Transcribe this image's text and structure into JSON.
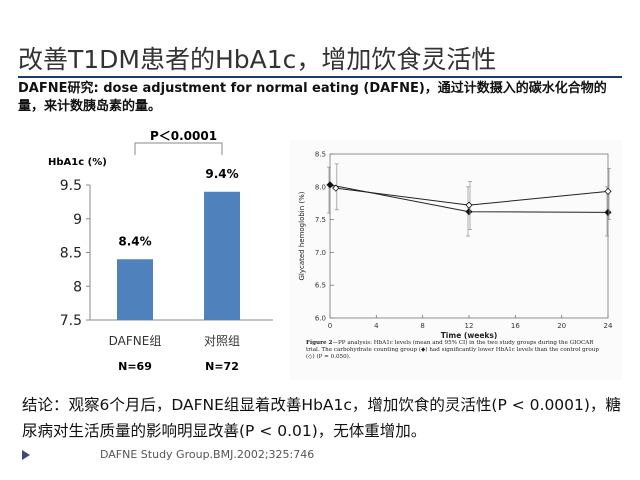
{
  "slide": {
    "title": "改善T1DM患者的HbA1c，增加饮食灵活性",
    "subtitle": "DAFNE研究: dose adjustment for normal eating (DAFNE)，通过计数摄入的碳水化合物的量，来计数胰岛素的量。",
    "conclusion": "结论：观察6个月后，DAFNE组显着改善HbA1c，增加饮食的灵活性(P < 0.0001)，糖尿病对生活质量的影响明显改善(P < 0.01)，无体重增加。",
    "reference": "DAFNE Study Group.BMJ.2002;325:746"
  },
  "chart_data": [
    {
      "type": "bar",
      "ylabel": "HbA1c (%)",
      "categories": [
        "DAFNE组",
        "对照组"
      ],
      "values": [
        8.4,
        9.4
      ],
      "value_labels": [
        "8.4%",
        "9.4%"
      ],
      "n_labels": [
        "N=69",
        "N=72"
      ],
      "annotation": "P＜0.0001",
      "ylim": [
        7.5,
        9.5
      ],
      "yticks": [
        7.5,
        8,
        8.5,
        9,
        9.5
      ],
      "ytick_labels": [
        "7.5",
        "8",
        "8.5",
        "9",
        "9.5"
      ],
      "bar_color": "#4f81bd",
      "grid": false
    },
    {
      "type": "line",
      "xlabel": "Time (weeks)",
      "ylabel": "Glycated hemoglobin (%)",
      "xlim": [
        0,
        24
      ],
      "ylim": [
        6.0,
        8.5
      ],
      "xticks": [
        0,
        4,
        8,
        12,
        16,
        20,
        24
      ],
      "yticks": [
        6.0,
        6.5,
        7.0,
        7.5,
        8.0,
        8.5
      ],
      "xtick_labels": [
        "0",
        "4",
        "8",
        "12",
        "16",
        "20",
        "24"
      ],
      "ytick_labels": [
        "6.0",
        "6.5",
        "7.0",
        "7.5",
        "8.0",
        "8.5"
      ],
      "series": [
        {
          "marker": "filled-diamond",
          "x": [
            0,
            12,
            24
          ],
          "y": [
            8.03,
            7.62,
            7.61
          ],
          "err_low": [
            7.6,
            7.25,
            7.25
          ],
          "err_high": [
            8.3,
            8.0,
            8.0
          ]
        },
        {
          "marker": "open-diamond",
          "x": [
            0.5,
            12,
            24
          ],
          "y": [
            7.98,
            7.72,
            7.93
          ],
          "err_low": [
            7.65,
            7.35,
            7.5
          ],
          "err_high": [
            8.35,
            8.08,
            8.28
          ]
        }
      ],
      "caption": {
        "label": "Figure 2",
        "text": "—PP analysis: HbA1c levels (mean and 95% CI) in the two study groups during the GIOCAR trial. The carbohydrate counting group (◆) had significantly lower HbA1c levels than the control group (◇) (P = 0.050)."
      }
    }
  ]
}
